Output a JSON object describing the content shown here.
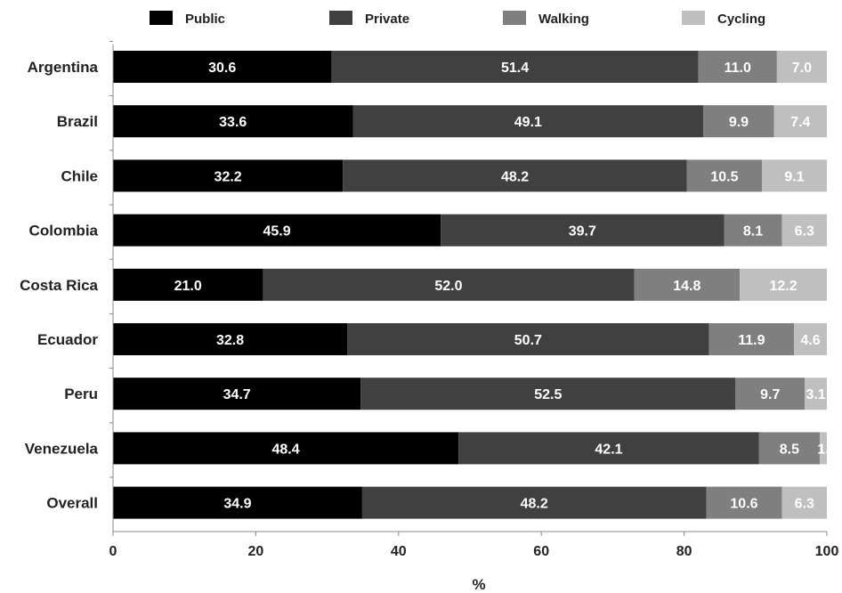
{
  "chart_data": {
    "type": "bar",
    "orientation": "horizontal",
    "stacked": true,
    "categories": [
      "Argentina",
      "Brazil",
      "Chile",
      "Colombia",
      "Costa Rica",
      "Ecuador",
      "Peru",
      "Venezuela",
      "Overall"
    ],
    "series": [
      {
        "name": "Public",
        "color": "#000000",
        "label_color": "#ffffff",
        "values": [
          30.6,
          33.6,
          32.2,
          45.9,
          21.0,
          32.8,
          34.7,
          48.4,
          34.9
        ]
      },
      {
        "name": "Private",
        "color": "#404040",
        "label_color": "#ffffff",
        "values": [
          51.4,
          49.1,
          48.2,
          39.7,
          52.0,
          50.7,
          52.5,
          42.1,
          48.2
        ]
      },
      {
        "name": "Walking",
        "color": "#7f7f7f",
        "label_color": "#ffffff",
        "values": [
          11.0,
          9.9,
          10.5,
          8.1,
          14.8,
          11.9,
          9.7,
          8.5,
          10.6
        ]
      },
      {
        "name": "Cycling",
        "color": "#bfbfbf",
        "label_color": "#ffffff",
        "values": [
          7.0,
          7.4,
          9.1,
          6.3,
          12.2,
          4.6,
          3.1,
          1.0,
          6.3
        ]
      }
    ],
    "data_labels": [
      [
        "30.6",
        "51.4",
        "11.0",
        "7.0"
      ],
      [
        "33.6",
        "49.1",
        "9.9",
        "7.4"
      ],
      [
        "32.2",
        "48.2",
        "10.5",
        "9.1"
      ],
      [
        "45.9",
        "39.7",
        "8.1",
        "6.3"
      ],
      [
        "21.0",
        "52.0",
        "14.8",
        "12.2"
      ],
      [
        "32.8",
        "50.7",
        "11.9",
        "4.6"
      ],
      [
        "34.7",
        "52.5",
        "9.7",
        "3.1"
      ],
      [
        "48.4",
        "42.1",
        "8.5",
        "1."
      ],
      [
        "34.9",
        "48.2",
        "10.6",
        "6.3"
      ]
    ],
    "xlabel": "%",
    "ylabel": "",
    "title": "",
    "xlim": [
      0,
      100
    ],
    "xticks": [
      0,
      20,
      40,
      60,
      80,
      100
    ],
    "grid": false,
    "legend_position": "top"
  }
}
